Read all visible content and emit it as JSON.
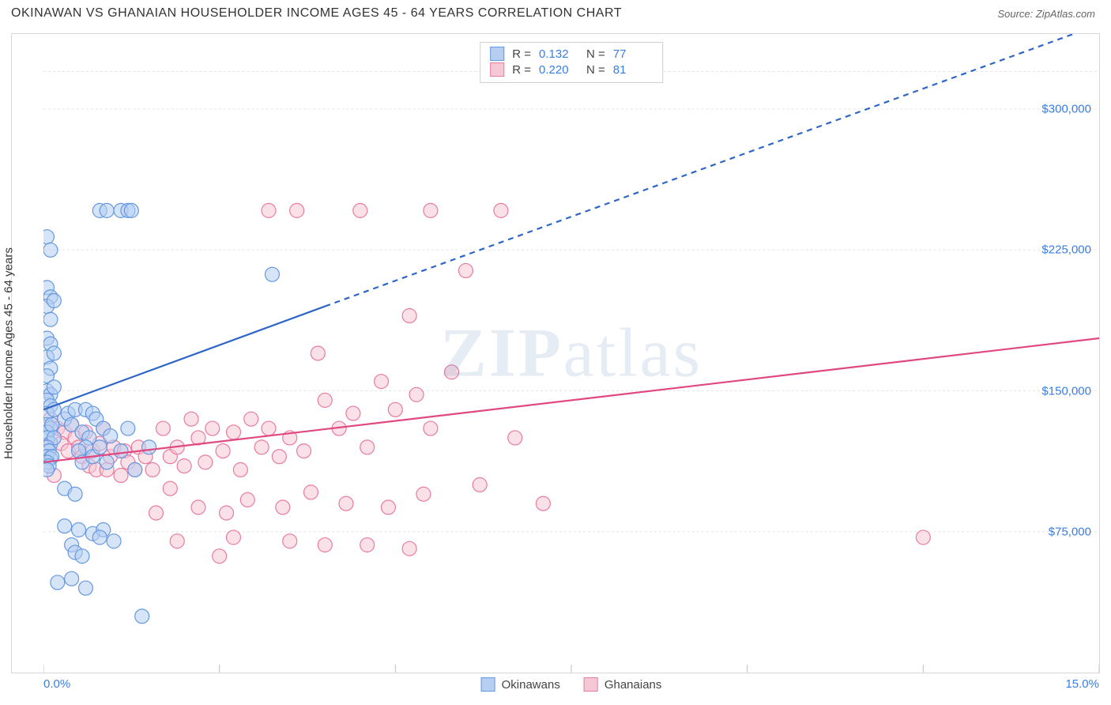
{
  "header": {
    "title": "OKINAWAN VS GHANAIAN HOUSEHOLDER INCOME AGES 45 - 64 YEARS CORRELATION CHART",
    "source": "Source: ZipAtlas.com"
  },
  "chart": {
    "type": "scatter",
    "watermark": "ZIPatlas",
    "ylabel": "Householder Income Ages 45 - 64 years",
    "background_color": "#ffffff",
    "grid_color": "#e4e4e4",
    "border_color": "#d7d7d7",
    "tick_label_color": "#3a7de0",
    "axis_text_color": "#333333",
    "xlim": [
      0,
      15
    ],
    "ylim": [
      0,
      340000
    ],
    "x_ticks": [
      0,
      2.5,
      5,
      7.5,
      10,
      12.5,
      15
    ],
    "x_tick_labels": {
      "left": "0.0%",
      "right": "15.0%"
    },
    "y_ticks": [
      75000,
      150000,
      225000,
      300000
    ],
    "y_tick_labels": [
      "$75,000",
      "$150,000",
      "$225,000",
      "$300,000"
    ],
    "marker_radius": 9,
    "marker_stroke_width": 1.2,
    "series": [
      {
        "name": "Okinawans",
        "color_fill": "#b5cef2",
        "color_stroke": "#6498e0",
        "r_value": "0.132",
        "n_value": "77",
        "trend": {
          "solid": {
            "x1": 0,
            "y1": 140000,
            "x2": 4.0,
            "y2": 195000
          },
          "dashed": {
            "x1": 4.0,
            "y1": 195000,
            "x2": 15.0,
            "y2": 345000
          },
          "stroke": "#2e66c7",
          "width": 2.2,
          "dash": "7 6"
        },
        "points": [
          [
            0.05,
            232000
          ],
          [
            0.1,
            225000
          ],
          [
            0.05,
            205000
          ],
          [
            0.1,
            200000
          ],
          [
            0.05,
            195000
          ],
          [
            0.1,
            188000
          ],
          [
            0.15,
            198000
          ],
          [
            0.05,
            178000
          ],
          [
            0.1,
            175000
          ],
          [
            0.05,
            168000
          ],
          [
            0.15,
            170000
          ],
          [
            0.1,
            162000
          ],
          [
            0.05,
            158000
          ],
          [
            0.05,
            150000
          ],
          [
            0.1,
            148000
          ],
          [
            0.15,
            152000
          ],
          [
            0.05,
            145000
          ],
          [
            0.1,
            142000
          ],
          [
            0.05,
            138000
          ],
          [
            0.15,
            140000
          ],
          [
            0.05,
            132000
          ],
          [
            0.1,
            130000
          ],
          [
            0.05,
            128000
          ],
          [
            0.12,
            132000
          ],
          [
            0.05,
            125000
          ],
          [
            0.1,
            122000
          ],
          [
            0.15,
            125000
          ],
          [
            0.05,
            120000
          ],
          [
            0.08,
            118000
          ],
          [
            0.05,
            115000
          ],
          [
            0.1,
            114000
          ],
          [
            0.12,
            115000
          ],
          [
            0.05,
            112000
          ],
          [
            0.08,
            110000
          ],
          [
            0.05,
            108000
          ],
          [
            0.3,
            135000
          ],
          [
            0.35,
            138000
          ],
          [
            0.4,
            132000
          ],
          [
            0.45,
            140000
          ],
          [
            0.55,
            128000
          ],
          [
            0.6,
            140000
          ],
          [
            0.65,
            125000
          ],
          [
            0.7,
            138000
          ],
          [
            0.6,
            120000
          ],
          [
            0.75,
            135000
          ],
          [
            0.5,
            118000
          ],
          [
            0.85,
            130000
          ],
          [
            0.55,
            112000
          ],
          [
            0.7,
            115000
          ],
          [
            0.8,
            120000
          ],
          [
            0.9,
            112000
          ],
          [
            0.95,
            126000
          ],
          [
            1.1,
            118000
          ],
          [
            1.2,
            130000
          ],
          [
            1.3,
            108000
          ],
          [
            1.5,
            120000
          ],
          [
            0.8,
            246000
          ],
          [
            0.9,
            246000
          ],
          [
            1.1,
            246000
          ],
          [
            1.2,
            246000
          ],
          [
            1.25,
            246000
          ],
          [
            3.25,
            212000
          ],
          [
            0.3,
            78000
          ],
          [
            0.5,
            76000
          ],
          [
            0.7,
            74000
          ],
          [
            0.85,
            76000
          ],
          [
            0.4,
            68000
          ],
          [
            0.45,
            64000
          ],
          [
            0.55,
            62000
          ],
          [
            0.2,
            48000
          ],
          [
            0.4,
            50000
          ],
          [
            0.6,
            45000
          ],
          [
            1.4,
            30000
          ],
          [
            0.8,
            72000
          ],
          [
            1.0,
            70000
          ],
          [
            0.3,
            98000
          ],
          [
            0.45,
            95000
          ]
        ]
      },
      {
        "name": "Ghanaians",
        "color_fill": "#f6c7d4",
        "color_stroke": "#e97ba0",
        "r_value": "0.220",
        "n_value": "81",
        "trend": {
          "solid": {
            "x1": 0,
            "y1": 112000,
            "x2": 15.0,
            "y2": 178000
          },
          "dashed": null,
          "stroke": "#e04880",
          "width": 2.2,
          "dash": null
        },
        "points": [
          [
            0.1,
            135000
          ],
          [
            0.2,
            130000
          ],
          [
            0.3,
            128000
          ],
          [
            0.4,
            132000
          ],
          [
            0.25,
            122000
          ],
          [
            0.35,
            118000
          ],
          [
            0.45,
            125000
          ],
          [
            0.5,
            120000
          ],
          [
            0.55,
            115000
          ],
          [
            0.6,
            128000
          ],
          [
            0.65,
            110000
          ],
          [
            0.7,
            118000
          ],
          [
            0.75,
            108000
          ],
          [
            0.8,
            122000
          ],
          [
            0.85,
            130000
          ],
          [
            0.9,
            108000
          ],
          [
            0.95,
            115000
          ],
          [
            1.0,
            120000
          ],
          [
            1.1,
            105000
          ],
          [
            1.15,
            118000
          ],
          [
            1.2,
            112000
          ],
          [
            1.3,
            108000
          ],
          [
            1.35,
            120000
          ],
          [
            1.45,
            115000
          ],
          [
            1.55,
            108000
          ],
          [
            1.7,
            130000
          ],
          [
            1.8,
            115000
          ],
          [
            1.9,
            120000
          ],
          [
            2.0,
            110000
          ],
          [
            2.1,
            135000
          ],
          [
            2.2,
            125000
          ],
          [
            2.3,
            112000
          ],
          [
            2.4,
            130000
          ],
          [
            2.55,
            118000
          ],
          [
            2.7,
            128000
          ],
          [
            2.8,
            108000
          ],
          [
            2.95,
            135000
          ],
          [
            3.1,
            120000
          ],
          [
            3.2,
            130000
          ],
          [
            3.35,
            115000
          ],
          [
            3.5,
            125000
          ],
          [
            3.7,
            118000
          ],
          [
            3.9,
            170000
          ],
          [
            4.0,
            145000
          ],
          [
            4.2,
            130000
          ],
          [
            4.4,
            138000
          ],
          [
            4.6,
            120000
          ],
          [
            4.8,
            155000
          ],
          [
            5.0,
            140000
          ],
          [
            5.2,
            190000
          ],
          [
            5.3,
            148000
          ],
          [
            5.5,
            130000
          ],
          [
            5.8,
            160000
          ],
          [
            6.0,
            214000
          ],
          [
            6.5,
            246000
          ],
          [
            6.7,
            125000
          ],
          [
            5.5,
            246000
          ],
          [
            4.5,
            246000
          ],
          [
            3.6,
            246000
          ],
          [
            3.2,
            246000
          ],
          [
            7.1,
            90000
          ],
          [
            6.2,
            100000
          ],
          [
            5.4,
            95000
          ],
          [
            4.9,
            88000
          ],
          [
            4.3,
            90000
          ],
          [
            3.8,
            96000
          ],
          [
            3.4,
            88000
          ],
          [
            2.9,
            92000
          ],
          [
            2.6,
            85000
          ],
          [
            2.2,
            88000
          ],
          [
            1.8,
            98000
          ],
          [
            1.6,
            85000
          ],
          [
            4.6,
            68000
          ],
          [
            5.2,
            66000
          ],
          [
            3.5,
            70000
          ],
          [
            2.7,
            72000
          ],
          [
            2.5,
            62000
          ],
          [
            1.9,
            70000
          ],
          [
            4.0,
            68000
          ],
          [
            12.5,
            72000
          ],
          [
            0.15,
            105000
          ]
        ]
      }
    ]
  }
}
